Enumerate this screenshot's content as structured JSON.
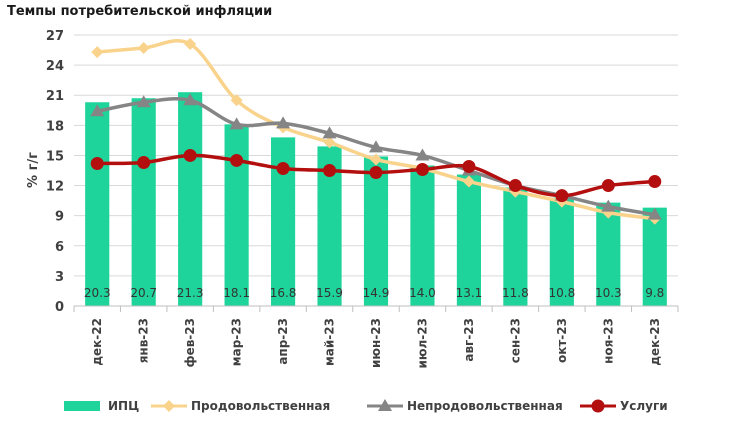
{
  "title": "Темпы потребительской инфляции",
  "chart_data": {
    "type": "bar",
    "title": "Темпы потребительской инфляции",
    "ylabel": "% г/г",
    "xlabel": "",
    "ylim": [
      0,
      27
    ],
    "yticks": [
      "0",
      "3",
      "6",
      "9",
      "12",
      "15",
      "18",
      "21",
      "24",
      "27"
    ],
    "grid": true,
    "legend_position": "bottom",
    "categories": [
      "дек-22",
      "янв-23",
      "фев-23",
      "мар-23",
      "апр-23",
      "май-23",
      "июн-23",
      "июл-23",
      "авг-23",
      "сен-23",
      "окт-23",
      "ноя-23",
      "дек-23"
    ],
    "series": [
      {
        "name": "ИПЦ",
        "kind": "bar",
        "color": "#1ed49a",
        "values": [
          20.3,
          20.7,
          21.3,
          18.1,
          16.8,
          15.9,
          14.9,
          14.0,
          13.1,
          11.8,
          10.8,
          10.3,
          9.8
        ],
        "labels": [
          "20.3",
          "20.7",
          "21.3",
          "18.1",
          "16.8",
          "15.9",
          "14.9",
          "14.0",
          "13.1",
          "11.8",
          "10.8",
          "10.3",
          "9.8"
        ]
      },
      {
        "name": "Продовольственная",
        "kind": "line",
        "color": "#f9d38b",
        "marker": "diamond",
        "values": [
          25.3,
          25.7,
          26.1,
          20.5,
          17.8,
          16.3,
          14.6,
          13.7,
          12.4,
          11.4,
          10.4,
          9.3,
          8.7
        ]
      },
      {
        "name": "Непродовольственная",
        "kind": "line",
        "color": "#858585",
        "marker": "triangle",
        "values": [
          19.4,
          20.3,
          20.5,
          18.1,
          18.2,
          17.2,
          15.8,
          15.0,
          13.5,
          12.0,
          11.0,
          9.9,
          9.1
        ]
      },
      {
        "name": "Услуги",
        "kind": "line",
        "color": "#b40f0f",
        "marker": "circle",
        "values": [
          14.2,
          14.3,
          15.0,
          14.5,
          13.7,
          13.5,
          13.3,
          13.6,
          13.9,
          12.0,
          11.0,
          12.0,
          12.4
        ]
      }
    ]
  }
}
